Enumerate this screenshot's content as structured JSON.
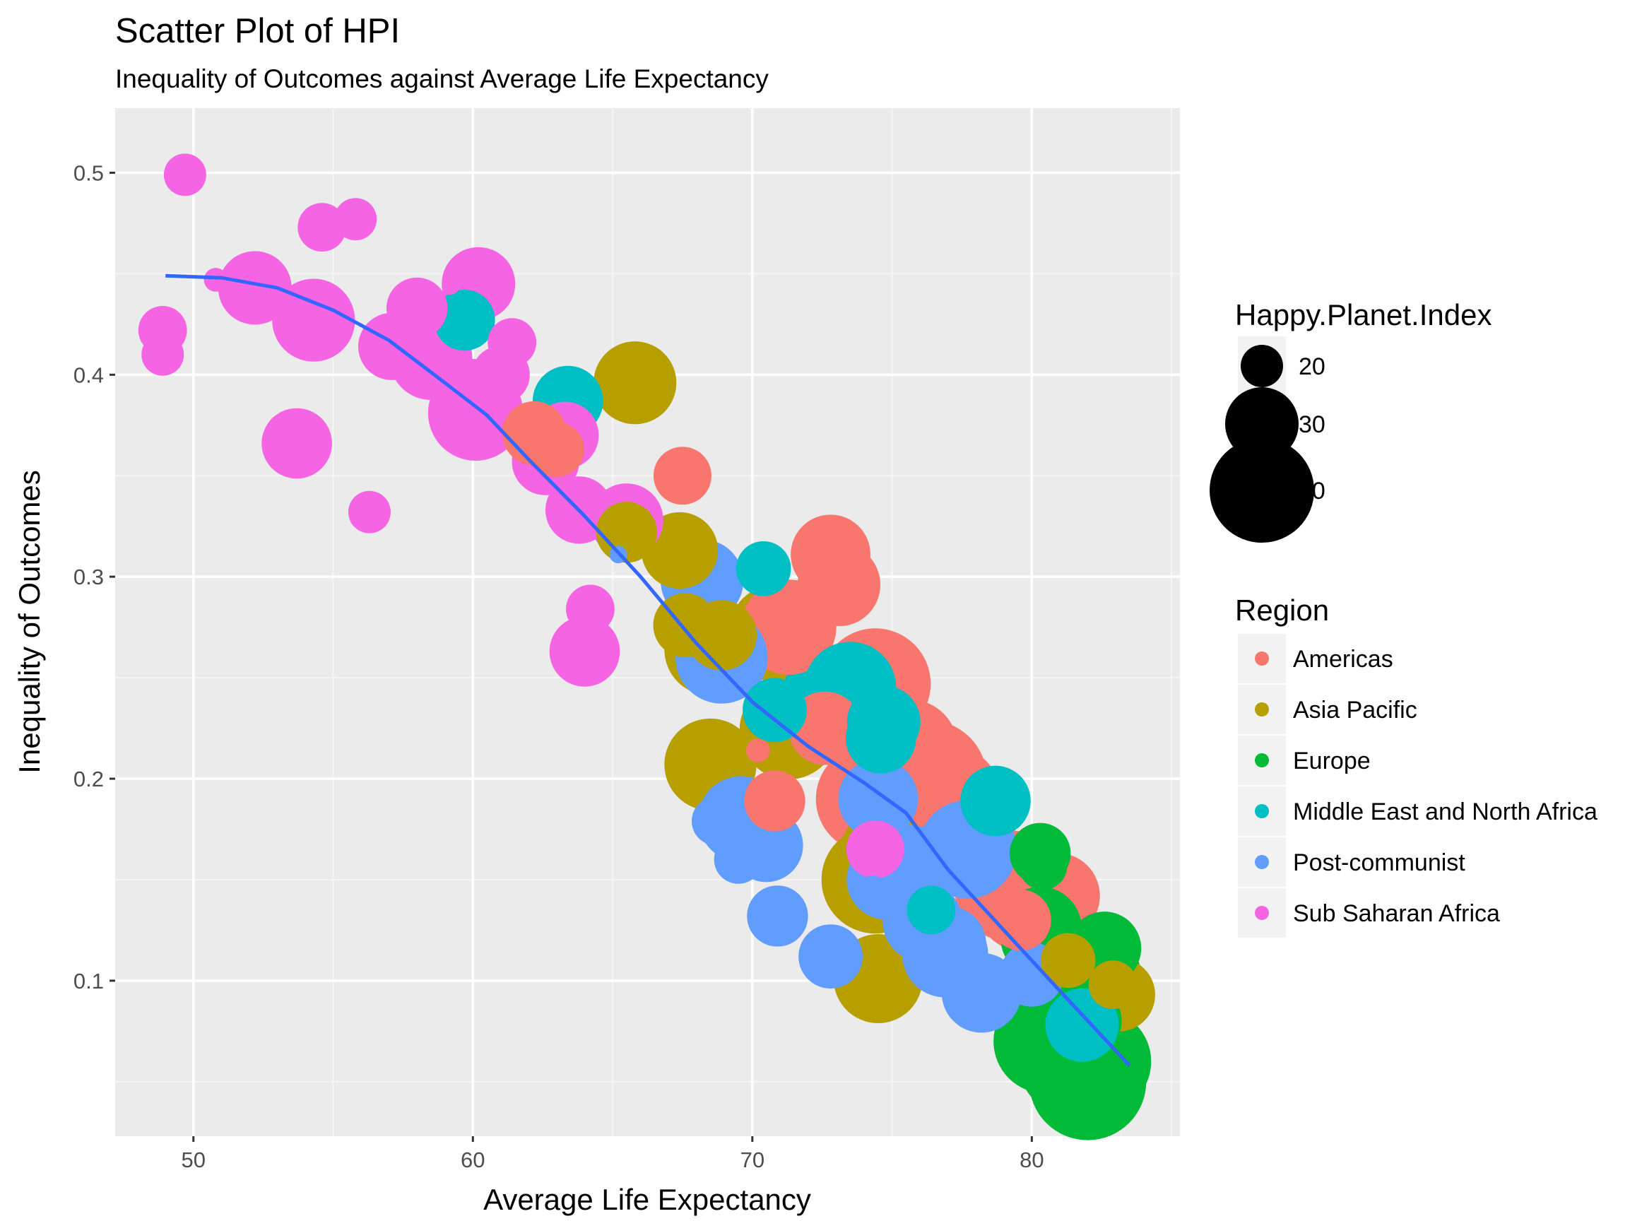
{
  "chart_data": {
    "type": "scatter",
    "title": "Scatter Plot of HPI",
    "subtitle": "Inequality of Outcomes against Average Life Expectancy",
    "xlabel": "Average Life Expectancy",
    "ylabel": "Inequality of Outcomes",
    "xlim": [
      47.2,
      85.3
    ],
    "ylim": [
      0.023,
      0.532
    ],
    "x_ticks": [
      "50",
      "60",
      "70",
      "80"
    ],
    "x_tick_values": [
      50,
      60,
      70,
      80
    ],
    "y_ticks": [
      "0.1",
      "0.2",
      "0.3",
      "0.4",
      "0.5"
    ],
    "y_tick_values": [
      0.1,
      0.2,
      0.3,
      0.4,
      0.5
    ],
    "grid": true,
    "panel_background": "#ebebeb",
    "size_legend": {
      "title": "Happy.Planet.Index",
      "labels": [
        "20",
        "30",
        "40"
      ],
      "values": [
        20,
        30,
        40
      ]
    },
    "color_legend": {
      "title": "Region",
      "entries": [
        {
          "name": "Americas",
          "color": "#F8766D"
        },
        {
          "name": "Asia Pacific",
          "color": "#B79F00"
        },
        {
          "name": "Europe",
          "color": "#00BA38"
        },
        {
          "name": "Middle East and North Africa",
          "color": "#00BFC4"
        },
        {
          "name": "Post-communist",
          "color": "#619CFF"
        },
        {
          "name": "Sub Saharan Africa",
          "color": "#F564E3"
        }
      ]
    },
    "trend_line": {
      "color": "#3366FF",
      "x": [
        49,
        51,
        53,
        55,
        57,
        59,
        60.5,
        62,
        64,
        66,
        68,
        70,
        72,
        74,
        75.5,
        77,
        79,
        81,
        83.5
      ],
      "y": [
        0.449,
        0.448,
        0.443,
        0.432,
        0.417,
        0.396,
        0.38,
        0.358,
        0.33,
        0.3,
        0.267,
        0.238,
        0.216,
        0.198,
        0.183,
        0.155,
        0.125,
        0.095,
        0.058
      ]
    },
    "series": [
      {
        "name": "Americas",
        "x": [
          62.2,
          63.0,
          67.5,
          71.3,
          72.8,
          73.1,
          72.6,
          74.2,
          74.4,
          74.8,
          75.6,
          76.3,
          77.0,
          76.5,
          70.8,
          70.2,
          79.2,
          79.8,
          80.9,
          79.6
        ],
        "y": [
          0.371,
          0.363,
          0.35,
          0.275,
          0.311,
          0.296,
          0.225,
          0.19,
          0.247,
          0.205,
          0.215,
          0.2,
          0.19,
          0.177,
          0.189,
          0.214,
          0.147,
          0.14,
          0.142,
          0.13
        ],
        "size": [
          27,
          24,
          25,
          37,
          32,
          33,
          30,
          41,
          42,
          40,
          38,
          44,
          41,
          40,
          26,
          14,
          42,
          40,
          34,
          26
        ]
      },
      {
        "name": "Asia Pacific",
        "x": [
          65.8,
          65.5,
          67.4,
          67.6,
          68.9,
          68.5,
          70.9,
          71.3,
          68.5,
          74.4,
          75.6,
          74.7,
          74.5,
          81.3,
          82.9,
          83.1
        ],
        "y": [
          0.396,
          0.322,
          0.313,
          0.276,
          0.271,
          0.264,
          0.272,
          0.224,
          0.207,
          0.15,
          0.185,
          0.164,
          0.101,
          0.11,
          0.098,
          0.093
        ],
        "size": [
          33,
          26,
          31,
          27,
          29,
          36,
          38,
          38,
          36,
          41,
          42,
          34,
          35,
          24,
          22,
          30
        ]
      },
      {
        "name": "Europe",
        "x": [
          80.3,
          80.4,
          80.3,
          80.1,
          80.3,
          80.9,
          81.0,
          80.5,
          81.2,
          81.8,
          82.6,
          82.2,
          81.5,
          82.0,
          82.4,
          82.6,
          81.9
        ],
        "y": [
          0.163,
          0.157,
          0.126,
          0.12,
          0.093,
          0.1,
          0.09,
          0.07,
          0.07,
          0.062,
          0.116,
          0.1,
          0.06,
          0.05,
          0.06,
          0.058,
          0.08
        ],
        "size": [
          26,
          22,
          33,
          28,
          36,
          35,
          30,
          40,
          44,
          45,
          30,
          38,
          42,
          44,
          40,
          34,
          30
        ]
      },
      {
        "name": "Middle East and North Africa",
        "x": [
          59.7,
          63.4,
          70.4,
          70.8,
          72.8,
          73.5,
          74.7,
          74.6,
          76.4,
          78.7,
          81.8
        ],
        "y": [
          0.427,
          0.387,
          0.304,
          0.234,
          0.24,
          0.245,
          0.228,
          0.22,
          0.135,
          0.189,
          0.078
        ],
        "size": [
          26,
          29,
          24,
          27,
          38,
          36,
          30,
          29,
          22,
          29,
          30
        ]
      },
      {
        "name": "Post-communist",
        "x": [
          65.2,
          68.2,
          68.9,
          69.6,
          70.0,
          68.7,
          69.5,
          70.5,
          70.9,
          72.8,
          74.5,
          75.7,
          74.8,
          76.1,
          77.0,
          76.9,
          77.7,
          78.2,
          80.0,
          74.3
        ],
        "y": [
          0.311,
          0.298,
          0.26,
          0.18,
          0.178,
          0.179,
          0.16,
          0.167,
          0.132,
          0.112,
          0.19,
          0.158,
          0.15,
          0.129,
          0.118,
          0.113,
          0.165,
          0.094,
          0.103,
          0.143
        ],
        "size": [
          12,
          33,
          36,
          34,
          30,
          22,
          22,
          30,
          26,
          27,
          32,
          31,
          32,
          32,
          31,
          34,
          38,
          32,
          27,
          18
        ]
      },
      {
        "name": "Sub Saharan Africa",
        "x": [
          49.7,
          50.8,
          48.9,
          48.9,
          52.2,
          54.3,
          54.6,
          55.8,
          57.1,
          57.6,
          58.0,
          58.4,
          58.5,
          59.2,
          60.2,
          60.0,
          60.1,
          61.0,
          61.4,
          62.6,
          63.3,
          63.8,
          53.7,
          56.3,
          64.2,
          64.0,
          65.5,
          74.4
        ],
        "y": [
          0.499,
          0.447,
          0.422,
          0.41,
          0.443,
          0.427,
          0.473,
          0.477,
          0.414,
          0.419,
          0.433,
          0.429,
          0.408,
          0.444,
          0.445,
          0.395,
          0.381,
          0.4,
          0.416,
          0.357,
          0.37,
          0.333,
          0.366,
          0.332,
          0.284,
          0.263,
          0.328,
          0.165
        ],
        "size": [
          20,
          14,
          22,
          20,
          30,
          33,
          22,
          20,
          28,
          24,
          26,
          12,
          33,
          12,
          30,
          23,
          37,
          25,
          22,
          28,
          28,
          28,
          29,
          20,
          22,
          29,
          30,
          25
        ]
      }
    ]
  }
}
